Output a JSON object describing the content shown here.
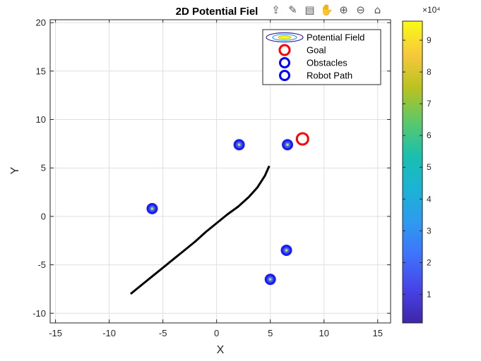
{
  "chart_data": {
    "type": "contour",
    "title": "2D Potential Fiel",
    "xlabel": "X",
    "ylabel": "Y",
    "xlim": [
      -15.5,
      16.2
    ],
    "ylim": [
      -11,
      20.3
    ],
    "xticks": [
      -15,
      -10,
      -5,
      0,
      5,
      10,
      15
    ],
    "yticks": [
      -10,
      -5,
      0,
      5,
      10,
      15,
      20
    ],
    "grid": true,
    "legend": {
      "placement": "top-right",
      "entries": [
        "Potential Field",
        "Goal",
        "Obstacles",
        "Robot Path"
      ]
    },
    "goal": {
      "x": 8,
      "y": 8,
      "color": "#ff0000"
    },
    "obstacles": [
      {
        "x": 2.1,
        "y": 7.4
      },
      {
        "x": 6.6,
        "y": 7.4
      },
      {
        "x": -6,
        "y": 0.8
      },
      {
        "x": 6.5,
        "y": -3.5
      },
      {
        "x": 5,
        "y": -6.5
      }
    ],
    "robot_path": {
      "x": [
        -8,
        -7,
        -6,
        -5,
        -4,
        -3,
        -2,
        -1,
        0,
        1,
        2,
        3,
        3.8,
        4.5,
        4.9
      ],
      "y": [
        -8,
        -7.1,
        -6.2,
        -5.3,
        -4.4,
        -3.5,
        -2.6,
        -1.6,
        -0.7,
        0.2,
        1,
        2,
        3,
        4.2,
        5.2
      ]
    },
    "colorbar": {
      "exponent_label": "×10⁴",
      "ticks": [
        "1",
        "2",
        "3",
        "4",
        "5",
        "6",
        "7",
        "8",
        "9"
      ],
      "tick_values": [
        1,
        2,
        3,
        4,
        5,
        6,
        7,
        8,
        9
      ],
      "range": [
        0.1,
        9.6
      ],
      "colormap": [
        "#3e26a8",
        "#4743e7",
        "#3f72fb",
        "#2e9af0",
        "#1bb3d4",
        "#1ac0ad",
        "#5cc86a",
        "#b9c21f",
        "#f7c83c",
        "#f9fb15"
      ]
    }
  },
  "toolbar": {
    "icons": [
      "export-icon",
      "brush-icon",
      "datatip-icon",
      "pan-icon",
      "zoom-in-icon",
      "zoom-out-icon",
      "home-icon"
    ]
  }
}
